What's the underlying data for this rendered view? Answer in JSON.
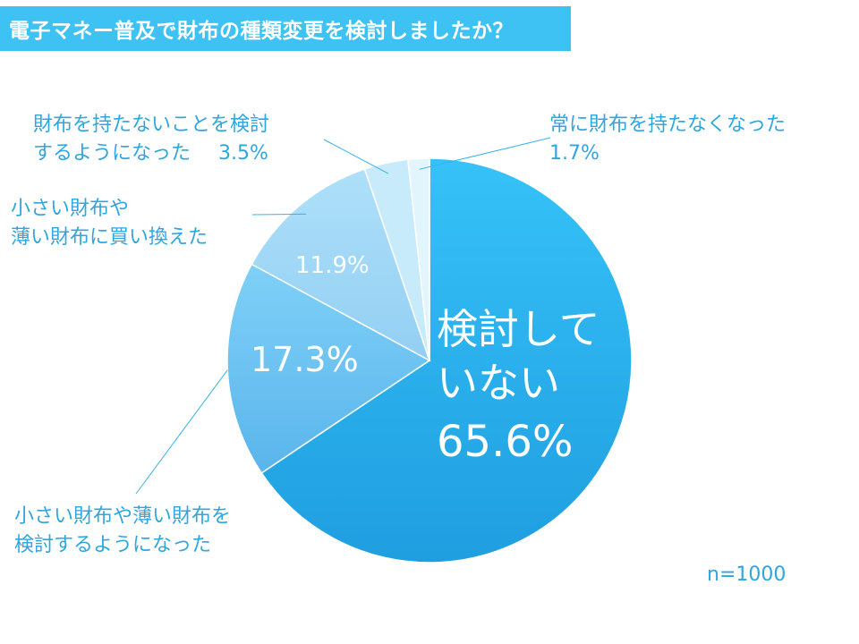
{
  "title": "電子マネー普及で財布の種類変更を検討しましたか？",
  "n_label": "n=1000",
  "colors": {
    "title_bg": "#3ec1f3",
    "label_text": "#2ea6df",
    "slices": [
      "#2aa9e8",
      "#6ec4f2",
      "#a6dcf7",
      "#c8ebfb",
      "#e2f5fd"
    ],
    "leader": "#3ab2ea"
  },
  "chart_data": {
    "type": "pie",
    "n": 1000,
    "slices": [
      {
        "label": "検討していない",
        "value": 65.6,
        "value_label": "65.6%",
        "inner_lines": [
          "検討して",
          "いない"
        ]
      },
      {
        "label": "小さい財布や薄い財布を検討するようになった",
        "value": 17.3,
        "value_label": "17.3%",
        "outer_lines": [
          "小さい財布や薄い財布を",
          "検討するようになった"
        ]
      },
      {
        "label": "小さい財布や薄い財布に買い換えた",
        "value": 11.9,
        "value_label": "11.9%",
        "outer_lines": [
          "小さい財布や",
          "薄い財布に買い換えた"
        ]
      },
      {
        "label": "財布を持たないことを検討するようになった",
        "value": 3.5,
        "value_label": "3.5%",
        "outer_lines": [
          "財布を持たないことを検討",
          "するようになった"
        ]
      },
      {
        "label": "常に財布を持たなくなった",
        "value": 1.7,
        "value_label": "1.7%",
        "outer_lines": [
          "常に財布を持たなくなった"
        ]
      }
    ]
  }
}
